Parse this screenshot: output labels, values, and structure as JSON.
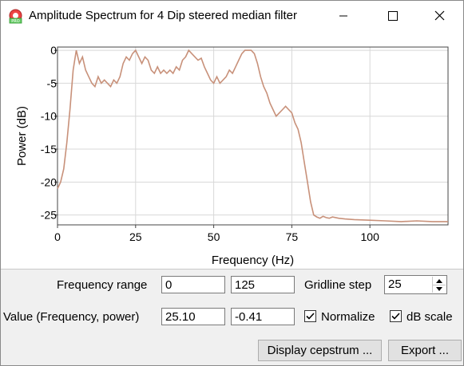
{
  "window": {
    "title": "Amplitude Spectrum for 4 Dip steered median filter",
    "icon": "app-logo-icon",
    "controls": [
      "minimize-icon",
      "maximize-icon",
      "close-icon"
    ]
  },
  "chart_data": {
    "type": "line",
    "xlabel": "Frequency (Hz)",
    "ylabel": "Power (dB)",
    "xlim": [
      0,
      125
    ],
    "ylim": [
      -26.5,
      0.5
    ],
    "xticks": [
      "0",
      "25",
      "50",
      "75",
      "100"
    ],
    "yticks": [
      "0",
      "-5",
      "-10",
      "-15",
      "-20",
      "-25"
    ],
    "grid": true,
    "color": "#c8917a",
    "x": [
      0,
      1,
      2,
      3,
      4,
      5,
      6,
      7,
      8,
      9,
      10,
      11,
      12,
      13,
      14,
      15,
      16,
      17,
      18,
      19,
      20,
      21,
      22,
      23,
      24,
      25,
      26,
      27,
      28,
      29,
      30,
      31,
      32,
      33,
      34,
      35,
      36,
      37,
      38,
      39,
      40,
      41,
      42,
      43,
      44,
      45,
      46,
      47,
      48,
      49,
      50,
      51,
      52,
      53,
      54,
      55,
      56,
      57,
      58,
      59,
      60,
      61,
      62,
      63,
      64,
      65,
      66,
      67,
      68,
      69,
      70,
      71,
      72,
      73,
      74,
      75,
      76,
      77,
      78,
      79,
      80,
      81,
      82,
      83,
      84,
      85,
      86,
      87,
      88,
      90,
      92,
      95,
      100,
      105,
      110,
      115,
      120,
      125
    ],
    "y": [
      -21,
      -20,
      -18,
      -14,
      -9,
      -3,
      0,
      -2,
      -1,
      -3,
      -4,
      -5,
      -5.5,
      -4,
      -5,
      -4.5,
      -5,
      -5.5,
      -4.5,
      -5,
      -4,
      -2,
      -1,
      -1.5,
      -0.5,
      0,
      -1,
      -2,
      -1,
      -1.5,
      -3,
      -3.5,
      -2.5,
      -3.5,
      -3,
      -3.5,
      -3,
      -3.5,
      -2.5,
      -3,
      -1.5,
      -1,
      0,
      -0.5,
      -1,
      -1.5,
      -1.2,
      -2.5,
      -3.5,
      -4.5,
      -5,
      -4,
      -5,
      -4.5,
      -4,
      -3,
      -3.5,
      -2.5,
      -1.5,
      -0.5,
      0,
      0,
      0,
      -0.5,
      -2,
      -4,
      -5.5,
      -6.5,
      -8,
      -9,
      -10,
      -9.5,
      -9,
      -8.5,
      -9,
      -9.5,
      -11,
      -12,
      -14,
      -17,
      -20,
      -23,
      -25,
      -25.3,
      -25.5,
      -25.2,
      -25.4,
      -25.5,
      -25.3,
      -25.5,
      -25.6,
      -25.7,
      -25.8,
      -25.9,
      -26,
      -25.9,
      -26,
      -26
    ]
  },
  "controls": {
    "frequency_range_label": "Frequency range",
    "freq_min": "0",
    "freq_max": "125",
    "gridline_step_label": "Gridline step",
    "gridline_step": "25",
    "value_label": "Value (Frequency, power)",
    "value_frequency": "25.10",
    "value_power": "-0.41",
    "normalize_label": "Normalize",
    "normalize_checked": true,
    "db_scale_label": "dB scale",
    "db_scale_checked": true,
    "display_cepstrum_label": "Display cepstrum ...",
    "export_label": "Export ..."
  }
}
